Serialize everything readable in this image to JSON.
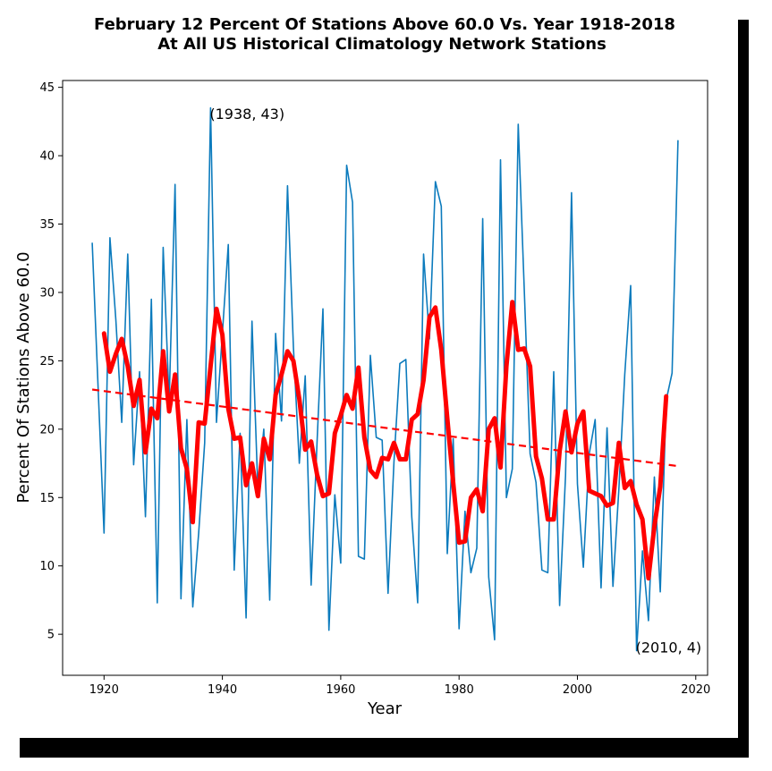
{
  "chart_data": {
    "type": "line",
    "title": "February 12 Percent Of Stations Above 60.0 Vs. Year 1918-2018",
    "subtitle": "At All US Historical Climatology Network Stations",
    "xlabel": "Year",
    "ylabel": "Percent Of Stations Above 60.0",
    "xlim": [
      1913,
      2022
    ],
    "ylim": [
      2,
      45.5
    ],
    "x_ticks": [
      "1920",
      "1940",
      "1960",
      "1980",
      "2000",
      "2020"
    ],
    "y_ticks": [
      "5",
      "10",
      "15",
      "20",
      "25",
      "30",
      "35",
      "40",
      "45"
    ],
    "grid": false,
    "colors": {
      "yearly": "#0c7bbd",
      "smoothed": "#ff0000",
      "trend": "#ff0000"
    },
    "series": [
      {
        "style": "thin-line",
        "x": [
          1918,
          1919,
          1920,
          1921,
          1922,
          1923,
          1924,
          1925,
          1926,
          1927,
          1928,
          1929,
          1930,
          1931,
          1932,
          1933,
          1934,
          1935,
          1936,
          1937,
          1938,
          1939,
          1940,
          1941,
          1942,
          1943,
          1944,
          1945,
          1946,
          1947,
          1948,
          1949,
          1950,
          1951,
          1952,
          1953,
          1954,
          1955,
          1956,
          1957,
          1958,
          1959,
          1960,
          1961,
          1962,
          1963,
          1964,
          1965,
          1966,
          1967,
          1968,
          1969,
          1970,
          1971,
          1972,
          1973,
          1974,
          1975,
          1976,
          1977,
          1978,
          1979,
          1980,
          1981,
          1982,
          1983,
          1984,
          1985,
          1986,
          1987,
          1988,
          1989,
          1990,
          1991,
          1992,
          1993,
          1994,
          1995,
          1996,
          1997,
          1998,
          1999,
          2000,
          2001,
          2002,
          2003,
          2004,
          2005,
          2006,
          2007,
          2008,
          2009,
          2010,
          2011,
          2012,
          2013,
          2014,
          2015,
          2016,
          2017
        ],
        "y": [
          33.6,
          23.0,
          12.4,
          34.0,
          28.0,
          20.5,
          32.8,
          17.4,
          24.2,
          13.6,
          29.5,
          7.3,
          33.3,
          22.0,
          37.9,
          7.6,
          20.7,
          7.0,
          12.4,
          19.0,
          43.5,
          20.5,
          27.0,
          33.5,
          9.7,
          19.7,
          6.2,
          27.9,
          15.5,
          20.0,
          7.5,
          27.0,
          20.6,
          37.8,
          26.0,
          17.5,
          23.9,
          8.6,
          19.0,
          28.8,
          5.3,
          15.2,
          10.2,
          39.3,
          36.6,
          10.7,
          10.5,
          25.4,
          19.4,
          19.2,
          8.0,
          17.6,
          24.8,
          25.1,
          13.6,
          7.3,
          32.8,
          26.6,
          38.1,
          36.3,
          10.9,
          19.3,
          5.4,
          14.0,
          9.5,
          11.3,
          35.4,
          9.2,
          4.6,
          39.7,
          15.0,
          17.1,
          42.3,
          30.5,
          18.2,
          16.1,
          9.7,
          9.5,
          24.2,
          7.1,
          16.6,
          37.3,
          16.0,
          9.9,
          18.2,
          20.7,
          8.4,
          20.1,
          8.5,
          15.6,
          24.0,
          30.5,
          3.8,
          11.1,
          6.0,
          16.5,
          8.1,
          22.1,
          24.1,
          41.1
        ]
      },
      {
        "style": "thick-line",
        "x": [
          1920,
          1921,
          1922,
          1923,
          1924,
          1925,
          1926,
          1927,
          1928,
          1929,
          1930,
          1931,
          1932,
          1933,
          1934,
          1935,
          1936,
          1937,
          1938,
          1939,
          1940,
          1941,
          1942,
          1943,
          1944,
          1945,
          1946,
          1947,
          1948,
          1949,
          1950,
          1951,
          1952,
          1953,
          1954,
          1955,
          1956,
          1957,
          1958,
          1959,
          1960,
          1961,
          1962,
          1963,
          1964,
          1965,
          1966,
          1967,
          1968,
          1969,
          1970,
          1971,
          1972,
          1973,
          1974,
          1975,
          1976,
          1977,
          1978,
          1979,
          1980,
          1981,
          1982,
          1983,
          1984,
          1985,
          1986,
          1987,
          1988,
          1989,
          1990,
          1991,
          1992,
          1993,
          1994,
          1995,
          1996,
          1997,
          1998,
          1999,
          2000,
          2001,
          2002,
          2003,
          2004,
          2005,
          2006,
          2007,
          2008,
          2009,
          2010,
          2011,
          2012,
          2013,
          2014,
          2015
        ],
        "y": [
          27.0,
          24.2,
          25.5,
          26.6,
          24.6,
          21.7,
          23.6,
          18.3,
          21.5,
          20.8,
          25.7,
          21.3,
          24.0,
          18.6,
          17.1,
          13.2,
          20.5,
          20.4,
          24.6,
          28.8,
          26.9,
          21.5,
          19.3,
          19.4,
          15.9,
          17.5,
          15.1,
          19.3,
          17.8,
          22.5,
          24.0,
          25.7,
          25.0,
          22.2,
          18.5,
          19.1,
          16.7,
          15.1,
          15.3,
          19.7,
          21.0,
          22.5,
          21.5,
          24.5,
          19.4,
          17.0,
          16.5,
          17.9,
          17.8,
          19.0,
          17.8,
          17.8,
          20.7,
          21.1,
          23.6,
          28.2,
          28.9,
          25.8,
          20.8,
          16.1,
          11.7,
          11.8,
          15.0,
          15.6,
          14.0,
          20.0,
          20.8,
          17.2,
          24.6,
          29.3,
          25.8,
          25.9,
          24.6,
          18.0,
          16.4,
          13.4,
          13.4,
          18.4,
          21.3,
          18.3,
          20.4,
          21.3,
          15.5,
          15.3,
          15.1,
          14.4,
          14.6,
          19.0,
          15.7,
          16.2,
          14.5,
          13.4,
          9.1,
          12.9,
          15.8,
          22.4
        ]
      },
      {
        "style": "dashed-trend",
        "x": [
          1918,
          2017
        ],
        "y": [
          22.9,
          17.3
        ]
      }
    ],
    "annotations": [
      {
        "text": "(1938, 43)",
        "x": 1938,
        "y": 43
      },
      {
        "text": "(2010, 4)",
        "x": 2010,
        "y": 4
      }
    ]
  }
}
